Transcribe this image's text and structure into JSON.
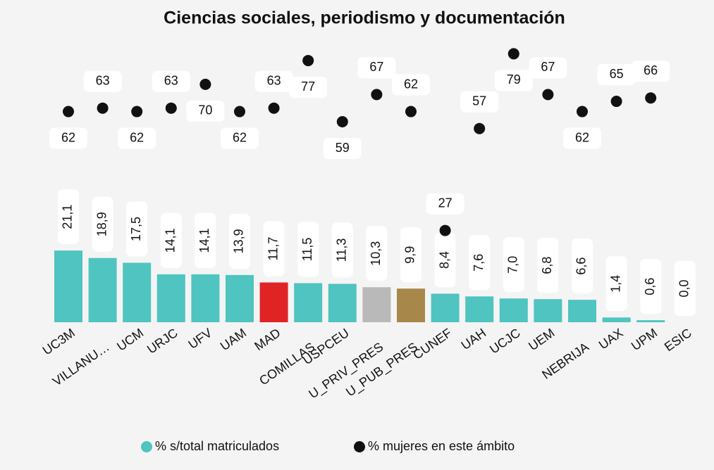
{
  "chart_data": {
    "type": "bar_dot",
    "title": "Ciencias sociales, periodismo y documentación",
    "categories": [
      "UC3M",
      "VILLANU…",
      "UCM",
      "URJC",
      "UFV",
      "UAM",
      "MAD",
      "COMILLAS",
      "USPCEU",
      "U_PRIV_PRES",
      "U_PUB_PRES",
      "CUNEF",
      "UAH",
      "UCJC",
      "UEM",
      "NEBRIJA",
      "UAX",
      "UPM",
      "ESIC"
    ],
    "ylim": [
      0,
      90
    ],
    "series": [
      {
        "name": "% s/total matriculados",
        "color": "#4fc4c0",
        "colors": [
          "#4fc4c0",
          "#4fc4c0",
          "#4fc4c0",
          "#4fc4c0",
          "#4fc4c0",
          "#4fc4c0",
          "#e02426",
          "#4fc4c0",
          "#4fc4c0",
          "#b9b9b9",
          "#a8884a",
          "#4fc4c0",
          "#4fc4c0",
          "#4fc4c0",
          "#4fc4c0",
          "#4fc4c0",
          "#4fc4c0",
          "#4fc4c0",
          "#4fc4c0"
        ],
        "values": [
          21.1,
          18.9,
          17.5,
          14.1,
          14.1,
          13.9,
          11.7,
          11.5,
          11.3,
          10.3,
          9.9,
          8.4,
          7.6,
          7.0,
          6.8,
          6.6,
          1.4,
          0.6,
          0.0
        ],
        "value_labels": [
          "21,1",
          "18,9",
          "17,5",
          "14,1",
          "14,1",
          "13,9",
          "11,7",
          "11,5",
          "11,3",
          "10,3",
          "9,9",
          "8,4",
          "7,6",
          "7,0",
          "6,8",
          "6,6",
          "1,4",
          "0,6",
          "0,0"
        ]
      },
      {
        "name": "% mujeres en este ámbito",
        "color": "#111111",
        "values": [
          62,
          63,
          62,
          63,
          70,
          62,
          63,
          77,
          59,
          67,
          62,
          27,
          57,
          79,
          67,
          62,
          65,
          66,
          null
        ]
      }
    ]
  }
}
